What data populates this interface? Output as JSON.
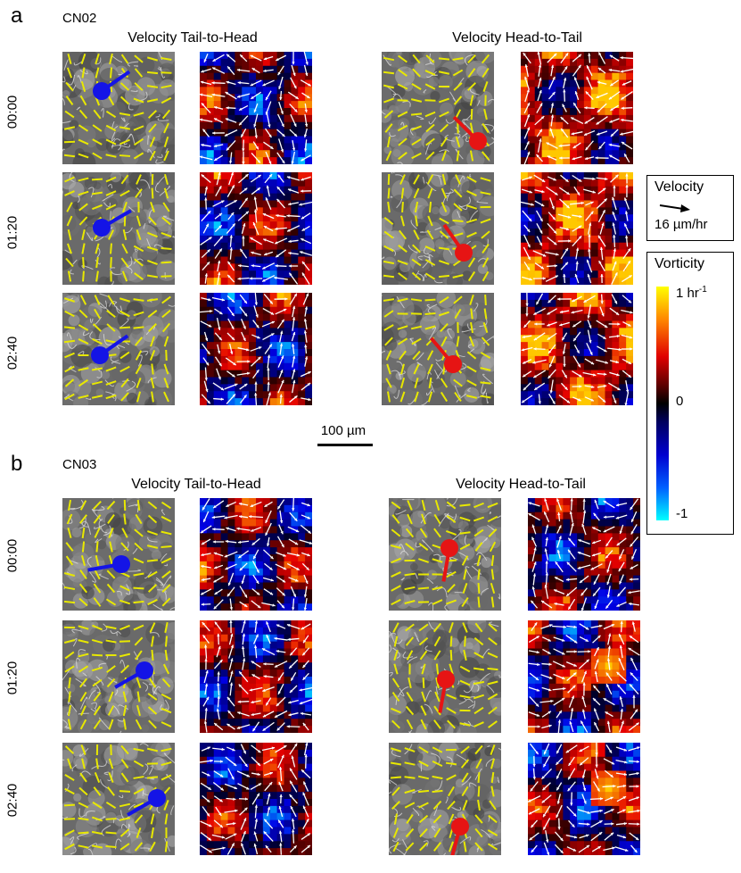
{
  "panels": [
    {
      "letter": "a",
      "sample": "CN02",
      "left_title": "Velocity Tail-to-Head",
      "right_title": "Velocity Head-to-Tail",
      "times": [
        "00:00",
        "01:20",
        "02:40"
      ]
    },
    {
      "letter": "b",
      "sample": "CN03",
      "left_title": "Velocity Tail-to-Head",
      "right_title": "Velocity Head-to-Tail",
      "times": [
        "00:00",
        "01:20",
        "02:40"
      ]
    }
  ],
  "scale_bar": {
    "label": "100 µm"
  },
  "legend": {
    "velocity_title": "Velocity",
    "velocity_value": "16 µm/hr",
    "vorticity_title": "Vorticity",
    "vorticity_max": "1 hr",
    "vorticity_max_sup": "-1",
    "vorticity_mid": "0",
    "vorticity_min": "-1"
  },
  "colors": {
    "defect_blue": "#1414e6",
    "defect_red": "#e61414",
    "director_yellow": "#e8e800",
    "arrow_white": "#ffffff"
  }
}
